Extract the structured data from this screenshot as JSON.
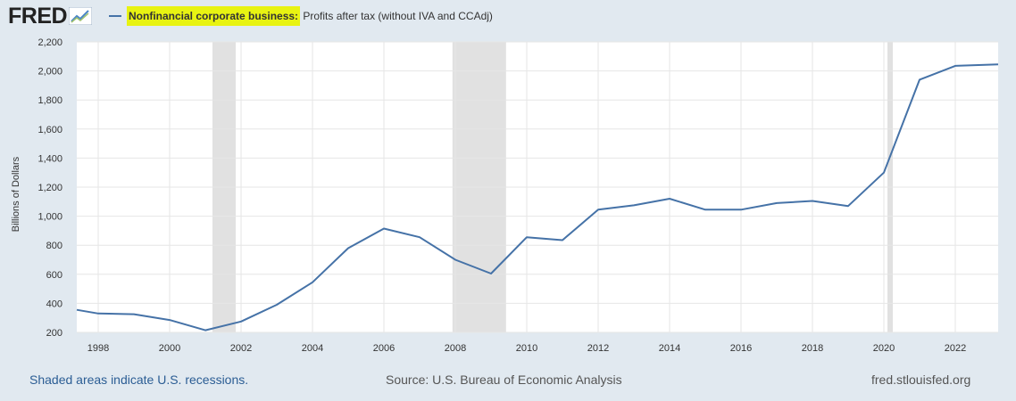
{
  "header": {
    "logo_text": "FRED",
    "legend_highlight": "Nonfinancial corporate business:",
    "legend_rest": " Profits after tax (without IVA and CCAdj)"
  },
  "footer": {
    "left": "Shaded areas indicate U.S. recessions.",
    "center": "Source: U.S. Bureau of Economic Analysis",
    "right": "fred.stlouisfed.org"
  },
  "colors": {
    "line": "#4572a7",
    "recession": "#e1e1e1",
    "grid": "#e6e6e6",
    "background": "#e1e9f0",
    "plot": "#ffffff",
    "highlight": "#e8f312"
  },
  "chart_data": {
    "type": "line",
    "title": "",
    "xlabel": "",
    "ylabel": "Billions of Dollars",
    "xlim": [
      1997.4,
      2023.2
    ],
    "ylim": [
      200,
      2200
    ],
    "y_ticks": [
      200,
      400,
      600,
      800,
      1000,
      1200,
      1400,
      1600,
      1800,
      2000,
      2200
    ],
    "y_tick_labels": [
      "200",
      "400",
      "600",
      "800",
      "1,000",
      "1,200",
      "1,400",
      "1,600",
      "1,800",
      "2,000",
      "2,200"
    ],
    "x_ticks": [
      1998,
      2000,
      2002,
      2004,
      2006,
      2008,
      2010,
      2012,
      2014,
      2016,
      2018,
      2020,
      2022
    ],
    "x_tick_labels": [
      "1998",
      "2000",
      "2002",
      "2004",
      "2006",
      "2008",
      "2010",
      "2012",
      "2014",
      "2016",
      "2018",
      "2020",
      "2022"
    ],
    "grid": true,
    "recessions": [
      [
        2001.2,
        2001.85
      ],
      [
        2007.92,
        2009.42
      ],
      [
        2020.1,
        2020.25
      ]
    ],
    "series": [
      {
        "name": "Nonfinancial corporate business: Profits after tax (without IVA and CCAdj)",
        "x": [
          1997.4,
          1998,
          1999,
          2000,
          2001,
          2002,
          2003,
          2004,
          2005,
          2006,
          2007,
          2008,
          2009,
          2010,
          2011,
          2012,
          2013,
          2014,
          2015,
          2016,
          2017,
          2018,
          2019,
          2020,
          2021,
          2022,
          2023.2
        ],
        "values": [
          355,
          330,
          325,
          285,
          215,
          275,
          390,
          545,
          780,
          915,
          855,
          700,
          605,
          855,
          835,
          1045,
          1075,
          1120,
          1045,
          1045,
          1090,
          1105,
          1070,
          1300,
          1940,
          2035,
          2045
        ]
      }
    ]
  }
}
